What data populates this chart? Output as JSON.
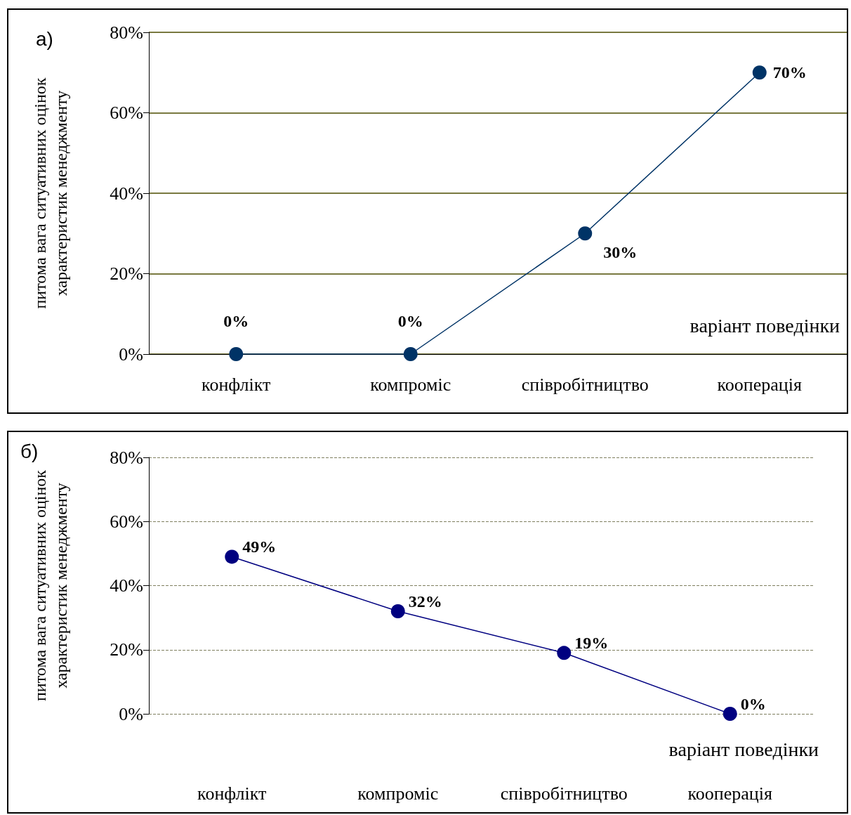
{
  "chart_data": [
    {
      "type": "line",
      "title": "а)",
      "xlabel": "варіант поведінки",
      "ylabel": "питома вага ситуативних оцінок\nхарактеристик менеджменту",
      "categories": [
        "конфлікт",
        "компроміс",
        "співробітництво",
        "кооперація"
      ],
      "series": [
        {
          "color": "#003366",
          "values": [
            0,
            0,
            30,
            70
          ],
          "value_labels": [
            "0%",
            "0%",
            "30%",
            "70%"
          ]
        }
      ],
      "ylim": [
        0,
        80
      ],
      "yticks": [
        {
          "value": 0,
          "label": "0%"
        },
        {
          "value": 20,
          "label": "20%"
        },
        {
          "value": 40,
          "label": "40%"
        },
        {
          "value": 60,
          "label": "60%"
        },
        {
          "value": 80,
          "label": "80%"
        }
      ],
      "grid": "y",
      "marker": "circle",
      "line_style": "solid"
    },
    {
      "type": "line",
      "title": "б)",
      "xlabel": "варіант поведінки",
      "ylabel": "питома вага ситуативних оцінок\nхарактеристик менеджменту",
      "categories": [
        "конфлікт",
        "компроміс",
        "співробітництво",
        "кооперація"
      ],
      "series": [
        {
          "color": "#000080",
          "values": [
            49,
            32,
            19,
            0
          ],
          "value_labels": [
            "49%",
            "32%",
            "19%",
            "0%"
          ]
        }
      ],
      "ylim": [
        0,
        80
      ],
      "yticks": [
        {
          "value": 0,
          "label": "0%"
        },
        {
          "value": 20,
          "label": "20%"
        },
        {
          "value": 40,
          "label": "40%"
        },
        {
          "value": 60,
          "label": "60%"
        },
        {
          "value": 80,
          "label": "80%"
        }
      ],
      "grid": "y",
      "marker": "circle",
      "line_style": "solid"
    }
  ]
}
